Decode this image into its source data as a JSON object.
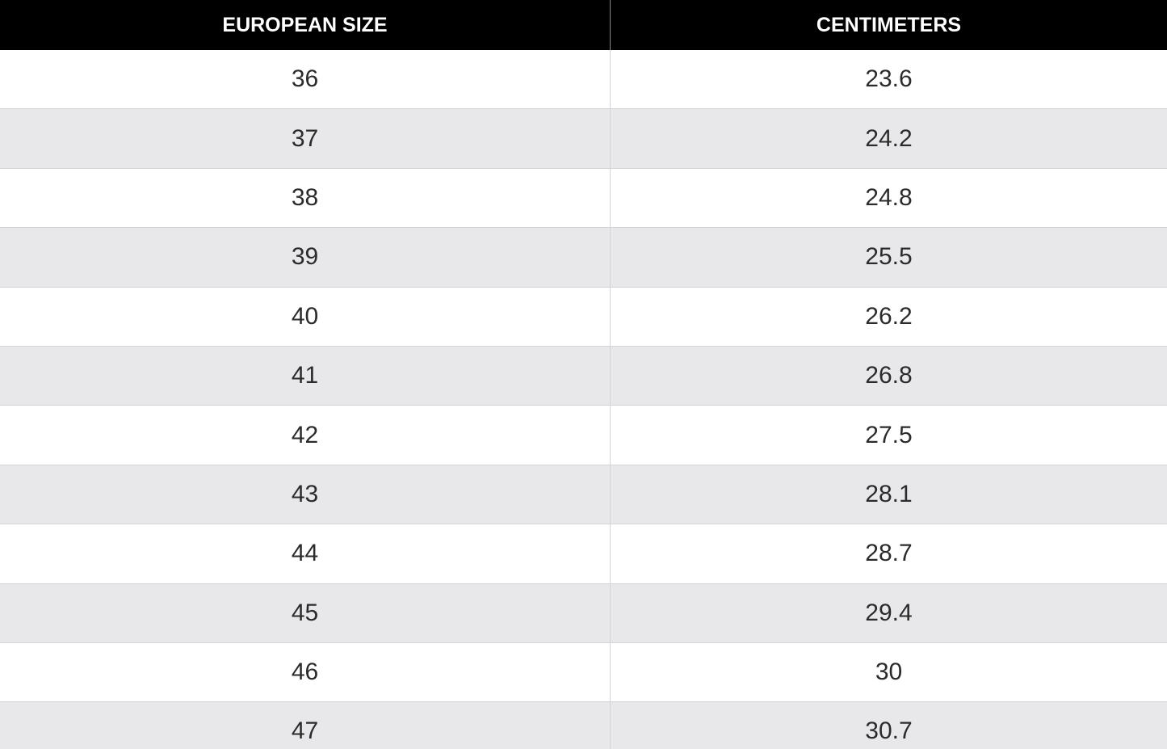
{
  "table": {
    "header": [
      "EUROPEAN SIZE",
      "CENTIMETERS"
    ],
    "rows": [
      [
        36,
        23.6
      ],
      [
        37,
        24.2
      ],
      [
        38,
        24.8
      ],
      [
        39,
        25.5
      ],
      [
        40,
        26.2
      ],
      [
        41,
        26.8
      ],
      [
        42,
        27.5
      ],
      [
        43,
        28.1
      ],
      [
        44,
        28.7
      ],
      [
        45,
        29.4
      ],
      [
        46,
        30
      ],
      [
        47,
        30.7
      ]
    ]
  }
}
